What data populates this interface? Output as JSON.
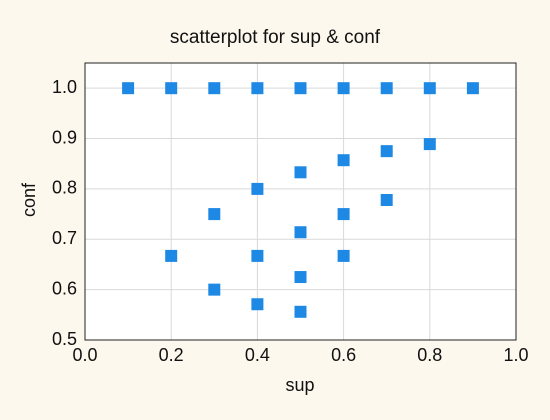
{
  "chart_data": {
    "type": "scatter",
    "title": "scatterplot for sup & conf",
    "x_label": "sup",
    "y_label": "conf",
    "color": "#1e88e5",
    "grid": true,
    "x": [
      0.1,
      0.2,
      0.3,
      0.4,
      0.5,
      0.6,
      0.7,
      0.8,
      0.9,
      0.2,
      0.3,
      0.3,
      0.4,
      0.4,
      0.4,
      0.5,
      0.5,
      0.5,
      0.5,
      0.6,
      0.6,
      0.6,
      0.7,
      0.7,
      0.8
    ],
    "values": [
      1.0,
      1.0,
      1.0,
      1.0,
      1.0,
      1.0,
      1.0,
      1.0,
      1.0,
      0.667,
      0.75,
      0.6,
      0.8,
      0.667,
      0.571,
      0.833,
      0.714,
      0.625,
      0.556,
      0.857,
      0.75,
      0.667,
      0.875,
      0.778,
      0.889
    ],
    "xlim": [
      0,
      1
    ],
    "ylim": [
      0.5,
      1.05
    ],
    "xticks": [
      {
        "value": 0,
        "label": "0.0"
      },
      0.2,
      0.4,
      0.6,
      0.8,
      {
        "value": 1,
        "label": "1.0"
      }
    ],
    "yticks": [
      0.5,
      0.6,
      0.7,
      0.8,
      0.9,
      {
        "value": 1,
        "label": "1.0"
      }
    ]
  }
}
